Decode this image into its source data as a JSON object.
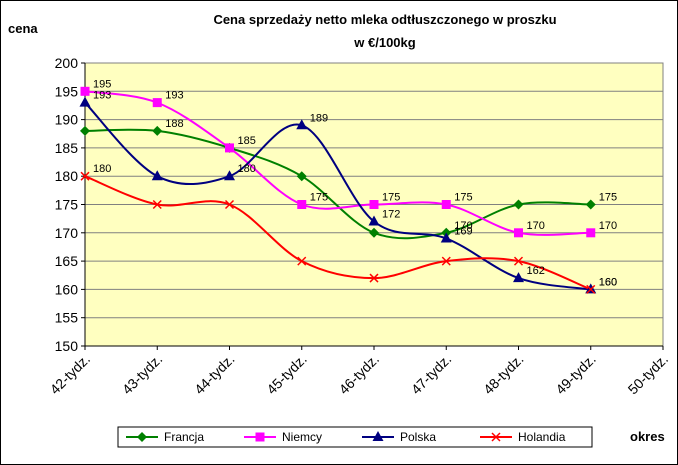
{
  "chart_data": {
    "type": "line",
    "title": "Cena sprzedaży netto mleka odtłuszczonego w proszku",
    "subtitle": "w €/100kg",
    "y_label": "cena",
    "x_label": "okres",
    "categories": [
      "42-tydz.",
      "43-tydz.",
      "44-tydz.",
      "45-tydz.",
      "46-tydz.",
      "47-tydz.",
      "48-tydz.",
      "49-tydz.",
      "50-tydz."
    ],
    "series": [
      {
        "name": "Francja",
        "color": "#008000",
        "marker": "diamond",
        "values": [
          188,
          188,
          185,
          180,
          170,
          170,
          175,
          175,
          null
        ],
        "value_labels": [
          null,
          "188",
          null,
          null,
          null,
          "170",
          null,
          "175",
          null
        ]
      },
      {
        "name": "Niemcy",
        "color": "#ff00ff",
        "marker": "square",
        "values": [
          195,
          193,
          185,
          175,
          175,
          175,
          170,
          170,
          null
        ],
        "value_labels": [
          "195",
          "193",
          "185",
          "175",
          "175",
          "175",
          "170",
          "170",
          null
        ]
      },
      {
        "name": "Polska",
        "color": "#000080",
        "marker": "triangle",
        "values": [
          193,
          180,
          180,
          189,
          172,
          169,
          162,
          160,
          null
        ],
        "value_labels": [
          "193",
          null,
          "180",
          "189",
          "172",
          "169",
          "162",
          "160",
          null
        ]
      },
      {
        "name": "Holandia",
        "color": "#ff0000",
        "marker": "x",
        "values": [
          180,
          175,
          175,
          165,
          162,
          165,
          165,
          160,
          null
        ],
        "value_labels": [
          "180",
          null,
          null,
          null,
          null,
          null,
          null,
          "160",
          null
        ]
      }
    ],
    "ylim": [
      150,
      200
    ],
    "yticks": [
      150,
      155,
      160,
      165,
      170,
      175,
      180,
      185,
      190,
      195,
      200
    ],
    "grid": true,
    "legend": "bottom"
  }
}
